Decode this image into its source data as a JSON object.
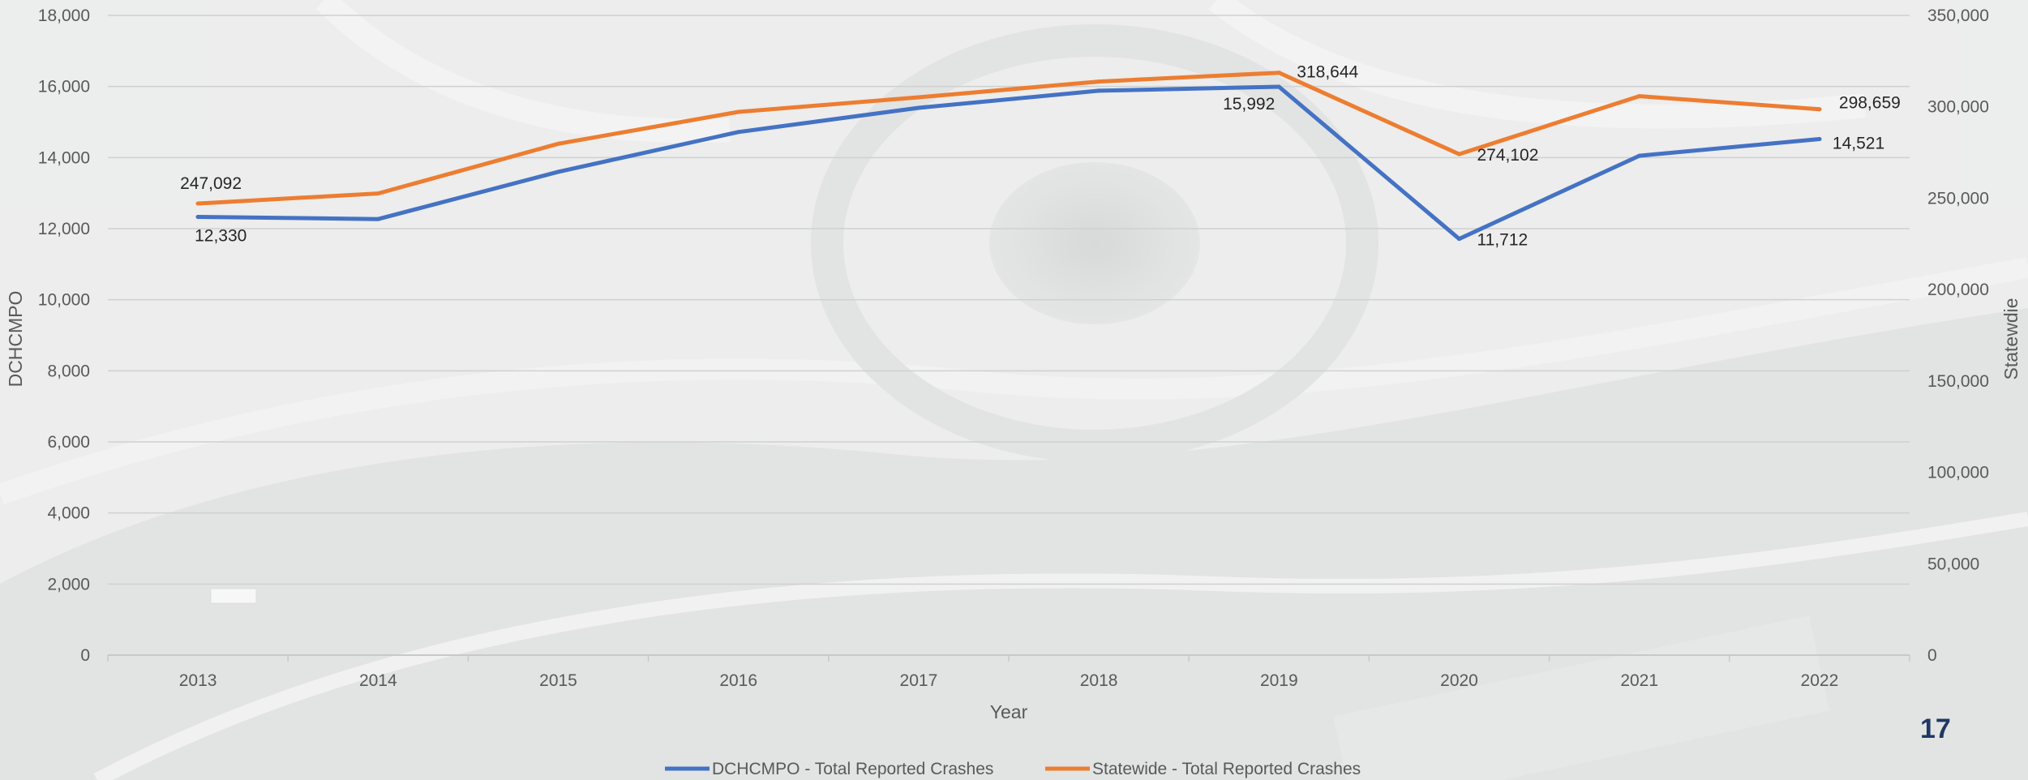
{
  "page": {
    "number": "17"
  },
  "chart_data": {
    "type": "line",
    "title": "",
    "xlabel": "Year",
    "ylabel_left": "DCHCMPO",
    "ylabel_right": "Statewdie",
    "x": [
      "2013",
      "2014",
      "2015",
      "2016",
      "2017",
      "2018",
      "2019",
      "2020",
      "2021",
      "2022"
    ],
    "ylim_left": [
      0,
      18000
    ],
    "ylim_right": [
      0,
      350000
    ],
    "yticks_left": [
      "0",
      "2,000",
      "4,000",
      "6,000",
      "8,000",
      "10,000",
      "12,000",
      "14,000",
      "16,000",
      "18,000"
    ],
    "yticks_right": [
      "0",
      "50,000",
      "100,000",
      "150,000",
      "200,000",
      "250,000",
      "300,000",
      "350,000"
    ],
    "grid": true,
    "legend_position": "bottom",
    "series": [
      {
        "name": "DCHCMPO - Total Reported Crashes",
        "axis": "left",
        "color": "#4472c4",
        "values": [
          12330,
          12270,
          13600,
          14720,
          15400,
          15880,
          15992,
          11712,
          14050,
          14521
        ],
        "labels": [
          "12,330",
          "",
          "",
          "",
          "",
          "",
          "15,992",
          "11,712",
          "",
          "14,521"
        ]
      },
      {
        "name": "Statewide - Total Reported Crashes",
        "axis": "right",
        "color": "#ed7d31",
        "values": [
          247092,
          252600,
          279800,
          297200,
          305200,
          313800,
          318644,
          274102,
          305800,
          298659
        ],
        "labels": [
          "247,092",
          "",
          "",
          "",
          "",
          "",
          "318,644",
          "274,102",
          "",
          "298,659"
        ]
      }
    ]
  }
}
